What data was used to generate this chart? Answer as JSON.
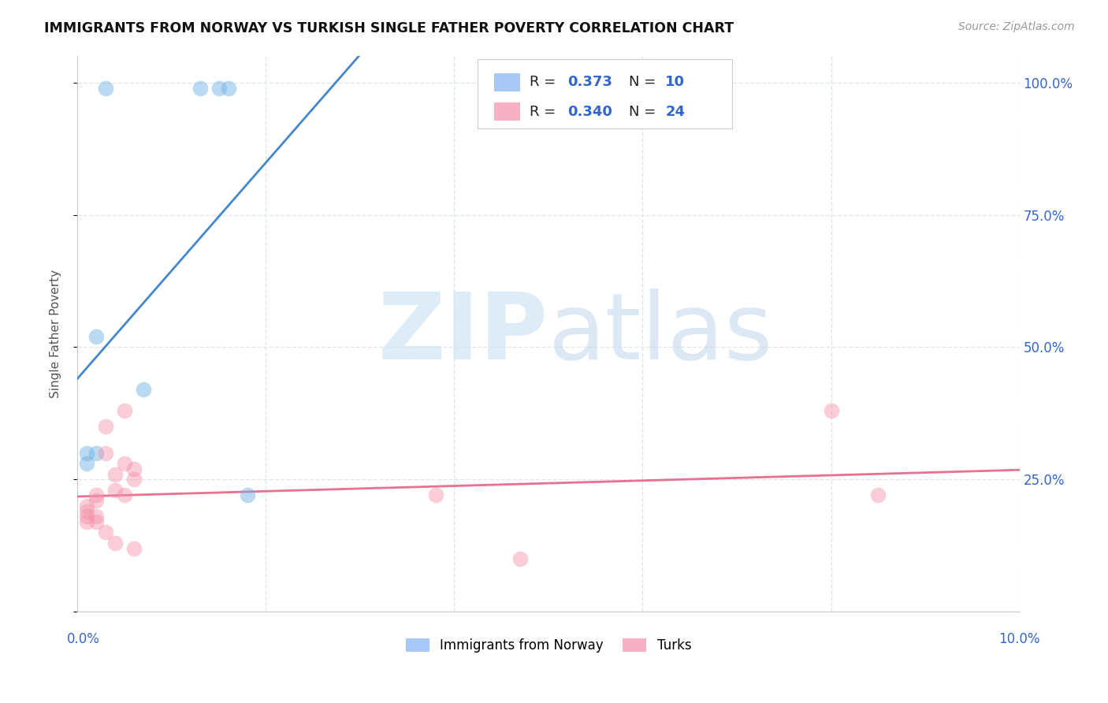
{
  "title": "IMMIGRANTS FROM NORWAY VS TURKISH SINGLE FATHER POVERTY CORRELATION CHART",
  "source": "Source: ZipAtlas.com",
  "ylabel": "Single Father Poverty",
  "watermark_zip": "ZIP",
  "watermark_atlas": "atlas",
  "norway_color": "#6aaee4",
  "turks_color": "#f490aa",
  "norway_line_color": "#4488cc",
  "turks_line_color": "#e87090",
  "background_color": "#ffffff",
  "grid_color": "#dde8f0",
  "xlim": [
    0,
    0.1
  ],
  "ylim": [
    0,
    1.05
  ],
  "norway_x": [
    0.003,
    0.013,
    0.015,
    0.016,
    0.002,
    0.007,
    0.001,
    0.001,
    0.002,
    0.018
  ],
  "norway_y": [
    0.99,
    0.99,
    0.99,
    0.99,
    0.52,
    0.42,
    0.3,
    0.28,
    0.3,
    0.22
  ],
  "turks_x": [
    0.001,
    0.001,
    0.001,
    0.001,
    0.002,
    0.002,
    0.002,
    0.002,
    0.003,
    0.003,
    0.003,
    0.004,
    0.004,
    0.004,
    0.005,
    0.005,
    0.005,
    0.006,
    0.006,
    0.006,
    0.038,
    0.047,
    0.08,
    0.085
  ],
  "turks_y": [
    0.2,
    0.19,
    0.18,
    0.17,
    0.22,
    0.21,
    0.18,
    0.17,
    0.35,
    0.3,
    0.15,
    0.26,
    0.23,
    0.13,
    0.38,
    0.28,
    0.22,
    0.27,
    0.25,
    0.12,
    0.22,
    0.1,
    0.38,
    0.22
  ],
  "norway_R": "0.373",
  "norway_N": "10",
  "turks_R": "0.340",
  "turks_N": "24",
  "legend_norway_color": "#a8c8f8",
  "legend_turks_color": "#f8b0c4",
  "legend_text_color": "#222222",
  "legend_num_color": "#3366cc",
  "ytick_labels": [
    "",
    "25.0%",
    "50.0%",
    "75.0%",
    "100.0%"
  ],
  "ytick_vals": [
    0,
    0.25,
    0.5,
    0.75,
    1.0
  ],
  "axis_label_color": "#3366cc",
  "marker_size": 200,
  "marker_alpha": 0.45
}
